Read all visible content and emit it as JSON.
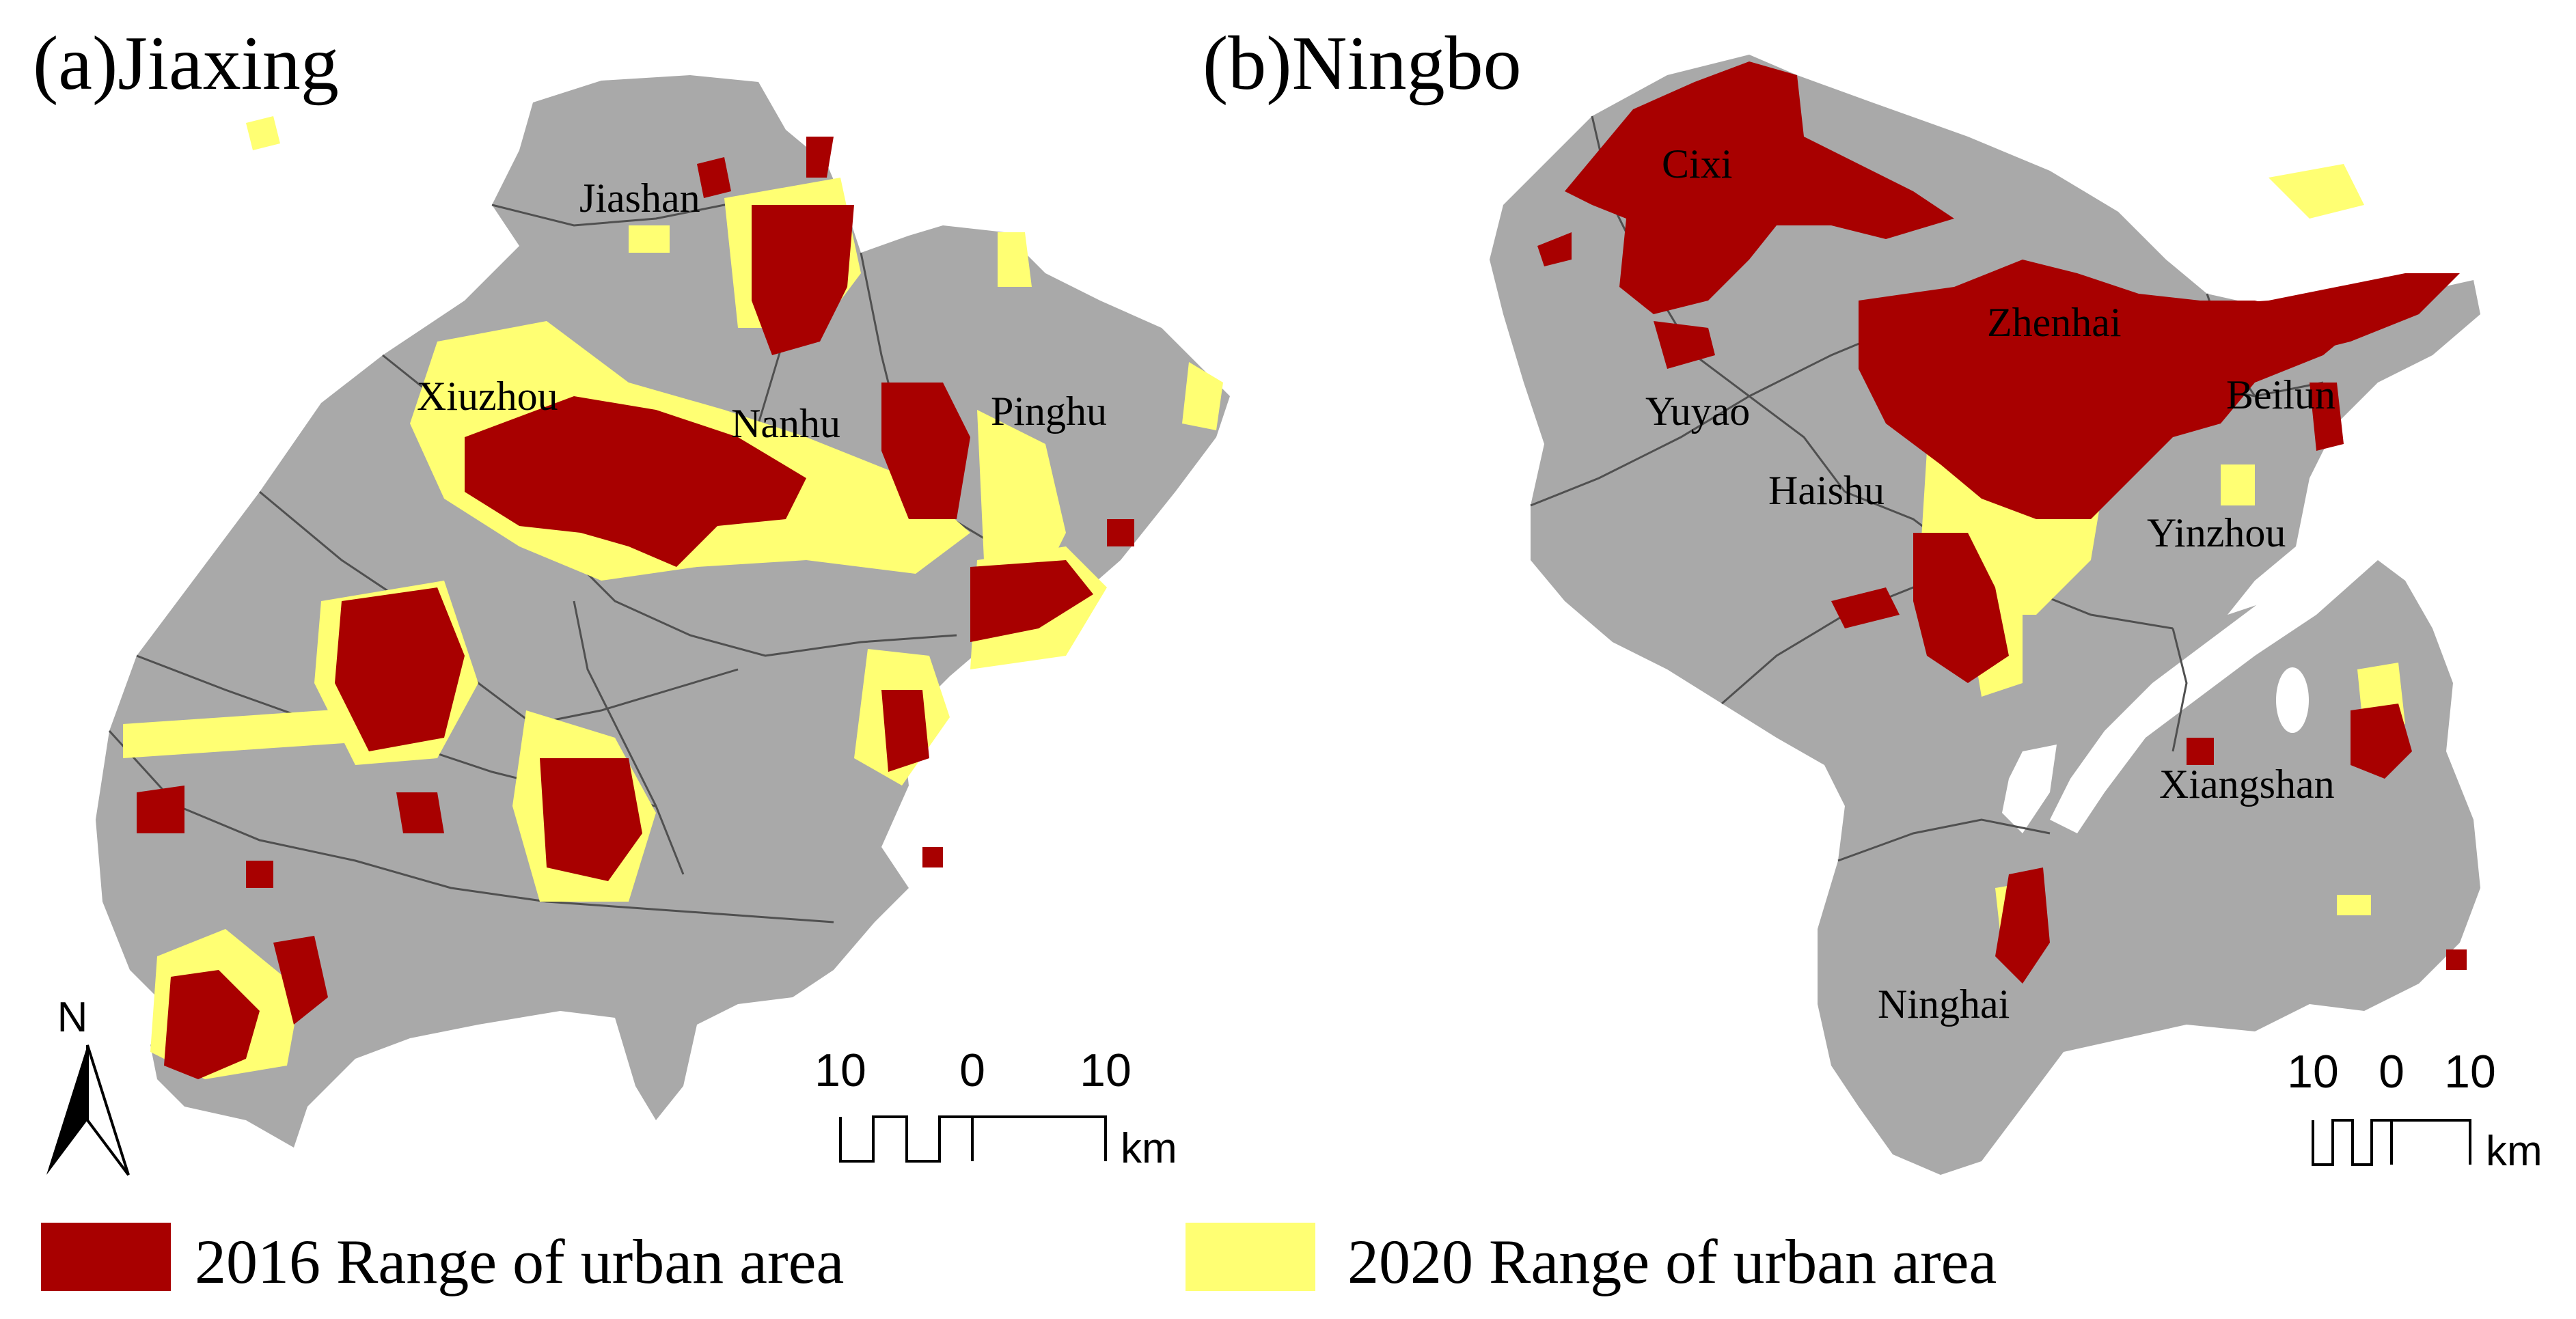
{
  "colors": {
    "land": "#a9a9a9",
    "urban_2016": "#a80000",
    "urban_2020": "#ffff73",
    "boundary": "#505050",
    "ink": "#000000"
  },
  "panels": [
    {
      "title": "(a)Jiaxing",
      "districts": [
        "Jiashan",
        "Xiuzhou",
        "Nanhu",
        "Pinghu"
      ],
      "scale_bar": {
        "labels": [
          "10",
          "0",
          "10"
        ],
        "unit": "km"
      },
      "north_arrow": {
        "label": "N",
        "icon": "north-arrow-icon"
      }
    },
    {
      "title": "(b)Ningbo",
      "districts": [
        "Cixi",
        "Zhenhai",
        "Yuyao",
        "Beilun",
        "Haishu",
        "Yinzhou",
        "Xiangshan",
        "Ninghai"
      ],
      "scale_bar": {
        "labels": [
          "10",
          "0",
          "10"
        ],
        "unit": "km"
      }
    }
  ],
  "legend": [
    {
      "label": "2016 Range of urban area",
      "color": "#a80000"
    },
    {
      "label": "2020 Range of urban area",
      "color": "#ffff73"
    }
  ]
}
